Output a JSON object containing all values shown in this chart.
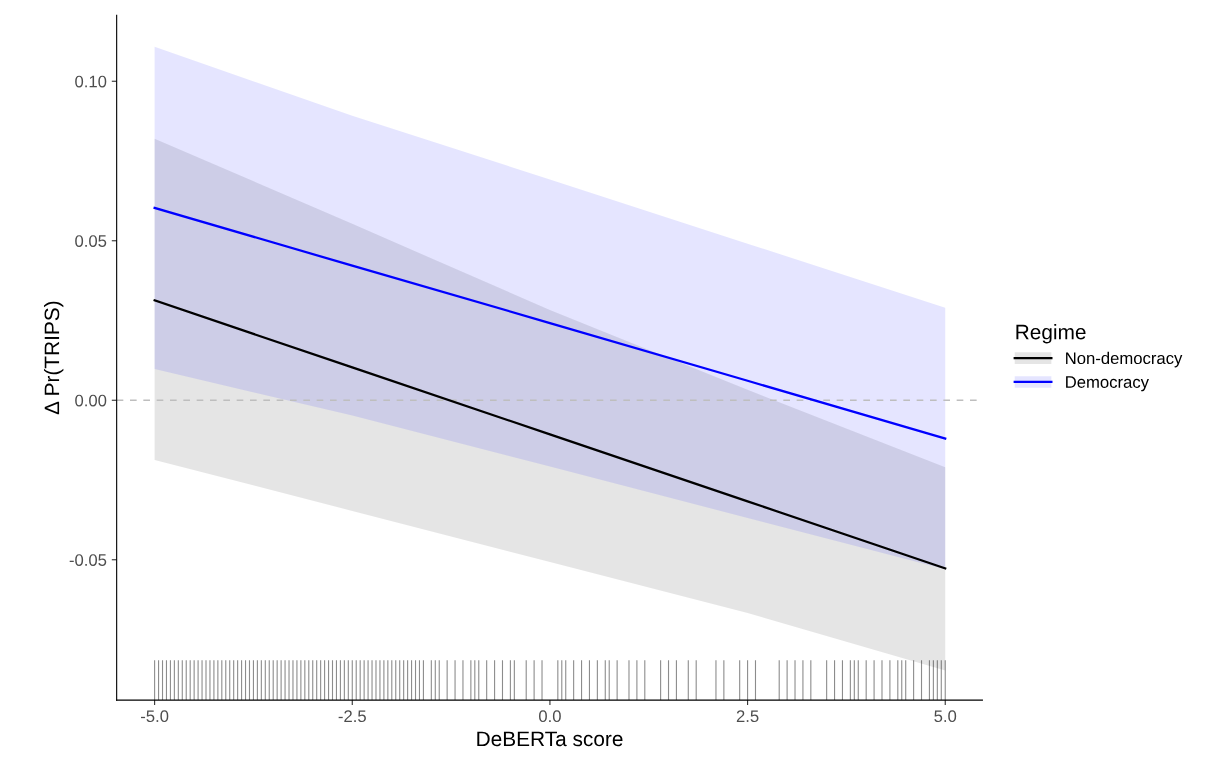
{
  "chart_data": {
    "type": "line",
    "xlabel": "DeBERTa score",
    "ylabel": "Δ Pr(TRIPS)",
    "legend_title": "Regime",
    "legend": "right",
    "grid": false,
    "x": [
      -5,
      -2.5,
      0,
      2.5,
      5
    ],
    "xlim": [
      -5.48,
      5.47
    ],
    "ylim": [
      -0.094,
      0.1207
    ],
    "xticks": [
      {
        "value": -5,
        "label": "-5.0"
      },
      {
        "value": -2.5,
        "label": "-2.5"
      },
      {
        "value": 0,
        "label": "0.0"
      },
      {
        "value": 2.5,
        "label": "2.5"
      },
      {
        "value": 5,
        "label": "5.0"
      }
    ],
    "yticks": [
      {
        "value": -0.05,
        "label": "-0.05"
      },
      {
        "value": 0,
        "label": "0.00"
      },
      {
        "value": 0.05,
        "label": "0.05"
      },
      {
        "value": 0.1,
        "label": "0.10"
      }
    ],
    "ref_lines": [
      {
        "axis": "y",
        "value": 0,
        "color": "#bebebe",
        "line_style": "dashed"
      }
    ],
    "series": [
      {
        "name": "Non-democracy",
        "color": "#000000",
        "values": [
          0.0313,
          0.0103,
          -0.0107,
          -0.0317,
          -0.0527
        ],
        "upper": [
          0.082,
          0.0553,
          0.0283,
          0.0033,
          -0.021
        ],
        "lower": [
          -0.0187,
          -0.0347,
          -0.0507,
          -0.0667,
          -0.0847
        ]
      },
      {
        "name": "Democracy",
        "color": "#0000ff",
        "values": [
          0.0603,
          0.0422,
          0.0242,
          0.0061,
          -0.012
        ],
        "upper": [
          0.1108,
          0.0892,
          0.0692,
          0.0491,
          0.029
        ],
        "lower": [
          0.0098,
          -0.0048,
          -0.0208,
          -0.0369,
          -0.053
        ]
      },
      {
        "type": "bar",
        "color": "#000000",
        "x": [
          -5.0,
          -4.95,
          -4.9,
          -4.85,
          -4.8,
          -4.75,
          -4.7,
          -4.65,
          -4.6,
          -4.55,
          -4.5,
          -4.45,
          -4.4,
          -4.35,
          -4.3,
          -4.25,
          -4.2,
          -4.15,
          -4.1,
          -4.05,
          -4.0,
          -3.95,
          -3.9,
          -3.85,
          -3.8,
          -3.75,
          -3.7,
          -3.65,
          -3.6,
          -3.55,
          -3.5,
          -3.45,
          -3.4,
          -3.35,
          -3.3,
          -3.25,
          -3.2,
          -3.15,
          -3.1,
          -3.05,
          -3.0,
          -2.95,
          -2.9,
          -2.85,
          -2.8,
          -2.75,
          -2.7,
          -2.65,
          -2.6,
          -2.55,
          -2.5,
          -2.45,
          -2.4,
          -2.35,
          -2.3,
          -2.25,
          -2.2,
          -2.15,
          -2.1,
          -2.05,
          -2.0,
          -1.95,
          -1.9,
          -1.85,
          -1.8,
          -1.75,
          -1.7,
          -1.65,
          -1.6,
          -1.5,
          -1.45,
          -1.4,
          -1.3,
          -1.2,
          -1.1,
          -1.0,
          -0.95,
          -0.9,
          -0.8,
          -0.7,
          -0.6,
          -0.5,
          -0.45,
          -0.3,
          -0.2,
          -0.1,
          0.1,
          0.15,
          0.2,
          0.3,
          0.4,
          0.5,
          0.6,
          0.7,
          0.75,
          0.85,
          1.0,
          1.1,
          1.2,
          1.4,
          1.5,
          1.6,
          1.75,
          1.85,
          2.1,
          2.2,
          2.4,
          2.5,
          2.6,
          2.9,
          3.0,
          3.1,
          3.2,
          3.3,
          3.5,
          3.6,
          3.7,
          3.8,
          3.85,
          3.9,
          4.0,
          4.1,
          4.2,
          4.3,
          4.4,
          4.45,
          4.5,
          4.6,
          4.7,
          4.8,
          4.85,
          4.9,
          4.95,
          5.0
        ],
        "base": [
          -0.094,
          -0.094,
          -0.094,
          -0.094,
          -0.094,
          -0.094,
          -0.094,
          -0.094,
          -0.094,
          -0.094,
          -0.094,
          -0.094,
          -0.094,
          -0.094,
          -0.094,
          -0.094,
          -0.094,
          -0.094,
          -0.094,
          -0.094,
          -0.094,
          -0.094,
          -0.094,
          -0.094,
          -0.094,
          -0.094,
          -0.094,
          -0.094,
          -0.094,
          -0.094,
          -0.094,
          -0.094,
          -0.094,
          -0.094,
          -0.094,
          -0.094,
          -0.094,
          -0.094,
          -0.094,
          -0.094,
          -0.094,
          -0.094,
          -0.094,
          -0.094,
          -0.094,
          -0.094,
          -0.094,
          -0.094,
          -0.094,
          -0.094,
          -0.094,
          -0.094,
          -0.094,
          -0.094,
          -0.094,
          -0.094,
          -0.094,
          -0.094,
          -0.094,
          -0.094,
          -0.094,
          -0.094,
          -0.094,
          -0.094,
          -0.094,
          -0.094,
          -0.094,
          -0.094,
          -0.094,
          -0.094,
          -0.094,
          -0.094,
          -0.094,
          -0.094,
          -0.094,
          -0.094,
          -0.094,
          -0.094,
          -0.094,
          -0.094,
          -0.094,
          -0.094,
          -0.094,
          -0.094,
          -0.094,
          -0.094,
          -0.094,
          -0.094,
          -0.094,
          -0.094,
          -0.094,
          -0.094,
          -0.094,
          -0.094,
          -0.094,
          -0.094,
          -0.094,
          -0.094,
          -0.094,
          -0.094,
          -0.094,
          -0.094,
          -0.094,
          -0.094,
          -0.094,
          -0.094,
          -0.094,
          -0.094,
          -0.094,
          -0.094,
          -0.094,
          -0.094,
          -0.094,
          -0.094,
          -0.094,
          -0.094,
          -0.094,
          -0.094,
          -0.094,
          -0.094,
          -0.094,
          -0.094,
          -0.094,
          -0.094,
          -0.094,
          -0.094,
          -0.094,
          -0.094,
          -0.094,
          -0.094,
          -0.094,
          -0.094,
          -0.094,
          -0.094
        ],
        "values": [
          0.0125,
          0.0125,
          0.0125,
          0.0125,
          0.0125,
          0.0125,
          0.0125,
          0.0125,
          0.0125,
          0.0125,
          0.0125,
          0.0125,
          0.0125,
          0.0125,
          0.0125,
          0.0125,
          0.0125,
          0.0125,
          0.0125,
          0.0125,
          0.0125,
          0.0125,
          0.0125,
          0.0125,
          0.0125,
          0.0125,
          0.0125,
          0.0125,
          0.0125,
          0.0125,
          0.0125,
          0.0125,
          0.0125,
          0.0125,
          0.0125,
          0.0125,
          0.0125,
          0.0125,
          0.0125,
          0.0125,
          0.0125,
          0.0125,
          0.0125,
          0.0125,
          0.0125,
          0.0125,
          0.0125,
          0.0125,
          0.0125,
          0.0125,
          0.0125,
          0.0125,
          0.0125,
          0.0125,
          0.0125,
          0.0125,
          0.0125,
          0.0125,
          0.0125,
          0.0125,
          0.0125,
          0.0125,
          0.0125,
          0.0125,
          0.0125,
          0.0125,
          0.0125,
          0.0125,
          0.0125,
          0.0125,
          0.0125,
          0.0125,
          0.0125,
          0.0125,
          0.0125,
          0.0125,
          0.0125,
          0.0125,
          0.0125,
          0.0125,
          0.0125,
          0.0125,
          0.0125,
          0.0125,
          0.0125,
          0.0125,
          0.0125,
          0.0125,
          0.0125,
          0.0125,
          0.0125,
          0.0125,
          0.0125,
          0.0125,
          0.0125,
          0.0125,
          0.0125,
          0.0125,
          0.0125,
          0.0125,
          0.0125,
          0.0125,
          0.0125,
          0.0125,
          0.0125,
          0.0125,
          0.0125,
          0.0125,
          0.0125,
          0.0125,
          0.0125,
          0.0125,
          0.0125,
          0.0125,
          0.0125,
          0.0125,
          0.0125,
          0.0125,
          0.0125,
          0.0125,
          0.0125,
          0.0125,
          0.0125,
          0.0125,
          0.0125,
          0.0125,
          0.0125,
          0.0125,
          0.0125,
          0.0125,
          0.0125,
          0.0125,
          0.0125,
          0.0125
        ]
      }
    ]
  }
}
